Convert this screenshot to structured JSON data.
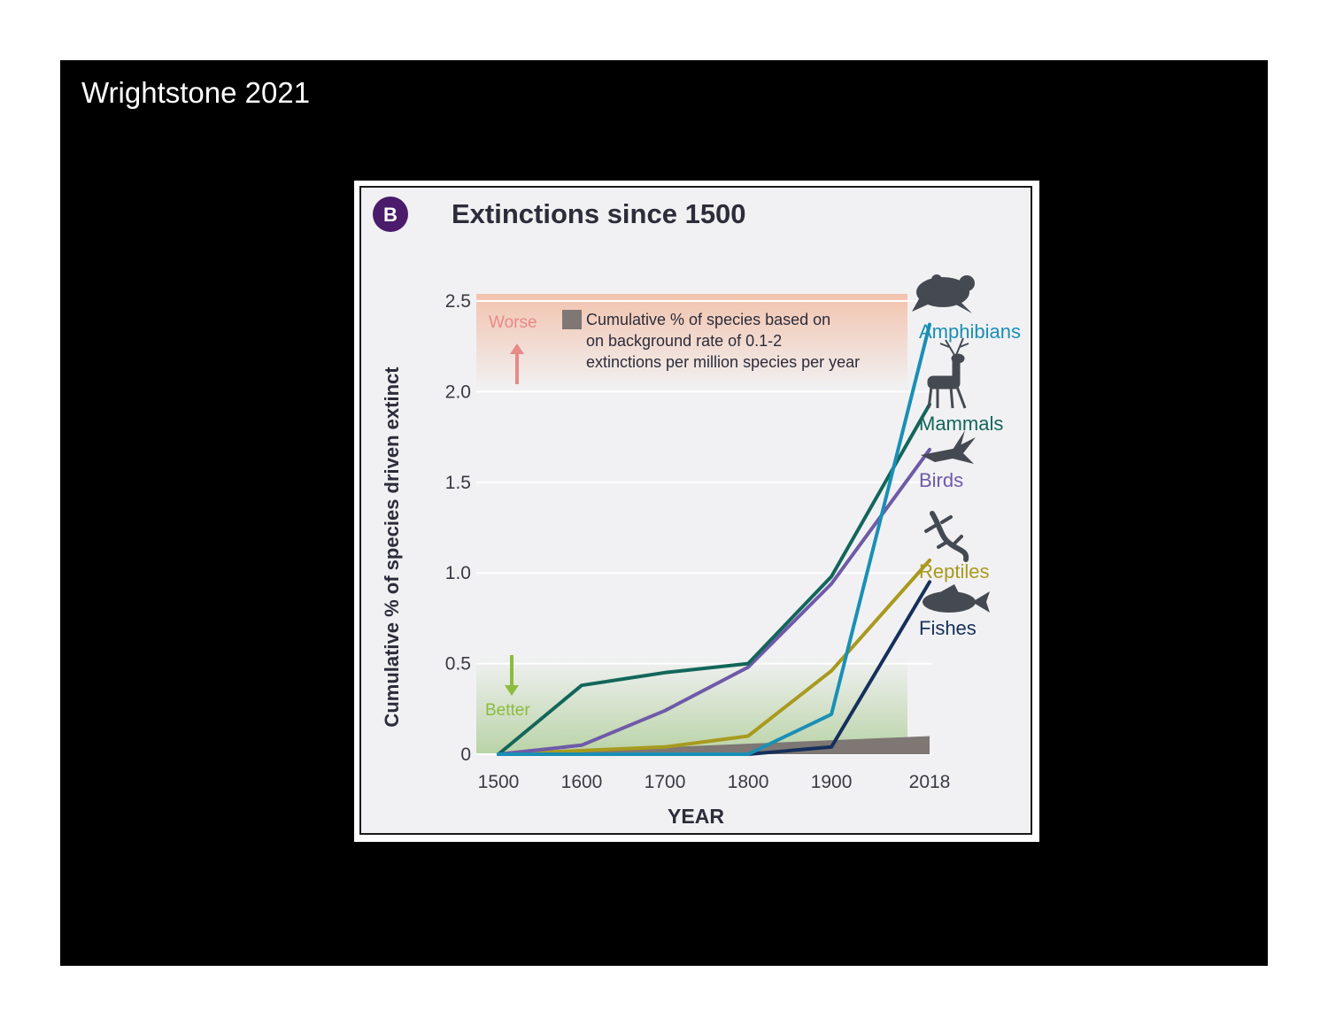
{
  "slide": {
    "title": "Wrightstone 2021"
  },
  "figure": {
    "panel_badge": "B",
    "title": "Extinctions since 1500",
    "annotation_worse": "Worse",
    "annotation_better": "Better",
    "legend_text": [
      "Cumulative % of species based on",
      "on background rate of 0.1-2",
      "extinctions per million species per year"
    ]
  },
  "colors": {
    "amphibians": "#1a8fb5",
    "mammals": "#13665a",
    "birds": "#6f5aa8",
    "reptiles": "#a89a1e",
    "fishes": "#16305c",
    "background_band": "#7e7774",
    "badge": "#4a1c6b",
    "worse": "#e88a86",
    "better": "#8dbb3e"
  },
  "chart_data": {
    "type": "line",
    "title": "Extinctions since 1500",
    "xlabel": "YEAR",
    "ylabel": "Cumulative % of species driven extinct",
    "x": [
      1500,
      1600,
      1700,
      1800,
      1900,
      2018
    ],
    "x_tick_labels": [
      "1500",
      "1600",
      "1700",
      "1800",
      "1900",
      "2018"
    ],
    "y_tick_labels": [
      "0",
      "0.5",
      "1.0",
      "1.5",
      "2.0",
      "2.5"
    ],
    "y_ticks": [
      0,
      0.5,
      1.0,
      1.5,
      2.0,
      2.5
    ],
    "xlim": [
      1500,
      2018
    ],
    "ylim": [
      0,
      2.5
    ],
    "series": [
      {
        "name": "Amphibians",
        "key": "amphibians",
        "values": [
          0,
          0,
          0,
          0,
          0.22,
          2.37
        ]
      },
      {
        "name": "Mammals",
        "key": "mammals",
        "values": [
          0,
          0.38,
          0.45,
          0.5,
          0.98,
          1.93
        ]
      },
      {
        "name": "Birds",
        "key": "birds",
        "values": [
          0,
          0.05,
          0.24,
          0.48,
          0.94,
          1.68
        ]
      },
      {
        "name": "Reptiles",
        "key": "reptiles",
        "values": [
          0,
          0.02,
          0.04,
          0.1,
          0.46,
          1.07
        ]
      },
      {
        "name": "Fishes",
        "key": "fishes",
        "values": [
          0,
          0,
          0,
          0,
          0.04,
          0.95
        ]
      }
    ],
    "background_rate": {
      "label": "Cumulative % of species based on on background rate of 0.1-2 extinctions per million species per year",
      "x": [
        1500,
        2018
      ],
      "upper": [
        0,
        0.1
      ]
    }
  }
}
